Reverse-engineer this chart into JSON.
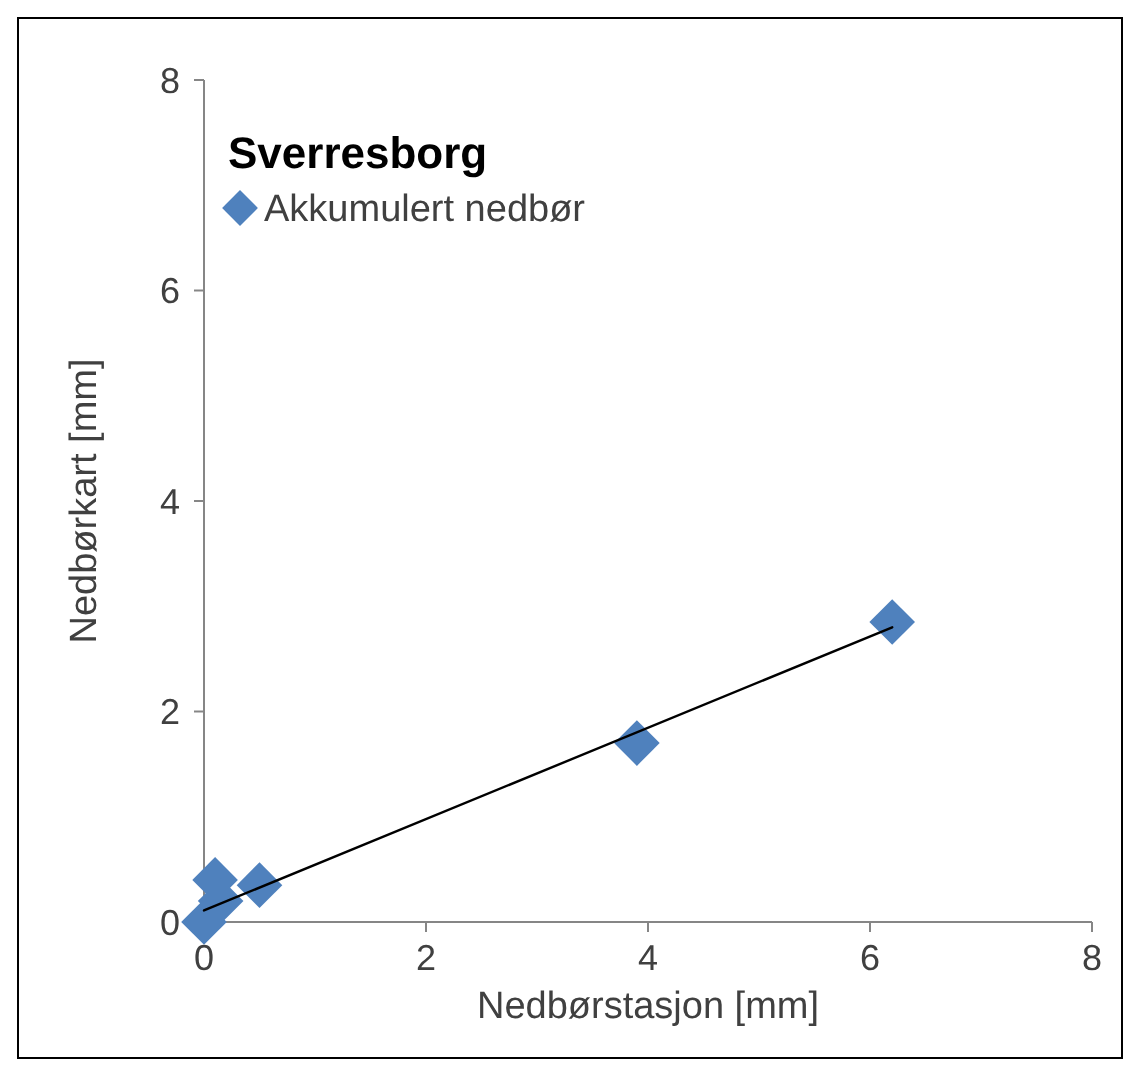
{
  "chart_data": {
    "type": "scatter",
    "title": "Sverresborg",
    "xlabel": "Nedbørstasjon [mm]",
    "ylabel": "Nedbørkart [mm]",
    "xlim": [
      0,
      8
    ],
    "xticks": [
      0,
      2,
      4,
      6,
      8
    ],
    "ylim": [
      0,
      8
    ],
    "yticks": [
      0,
      2,
      4,
      6,
      8
    ],
    "grid": false,
    "legend": "top left",
    "marker": "diamond",
    "series": [
      {
        "name": "Akkumulert nedbør",
        "color": "#4f81bd",
        "x": [
          6.2,
          3.9,
          0.5,
          0.1,
          0.15,
          0
        ],
        "values": [
          2.85,
          1.7,
          0.35,
          0.4,
          0.2,
          0
        ]
      },
      {
        "type": "line",
        "color": "#000000",
        "x": [
          0,
          6.2
        ],
        "values": [
          0.11,
          2.8
        ],
        "line_style": "solid",
        "marker": "none"
      }
    ]
  }
}
